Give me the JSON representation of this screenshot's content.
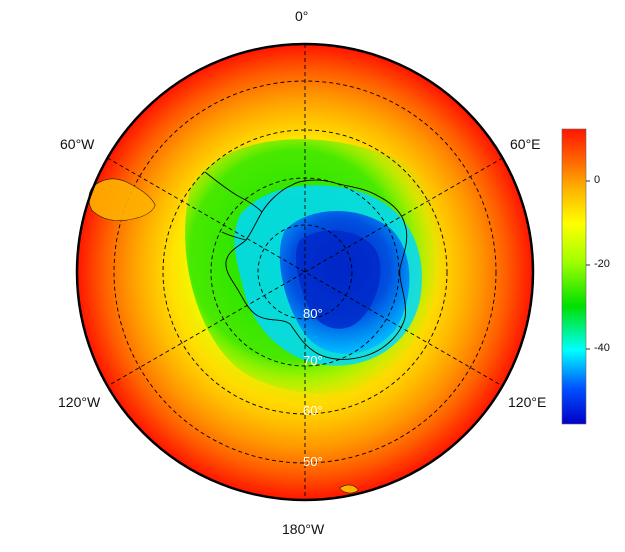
{
  "map": {
    "projection": "south-polar-stereographic",
    "colormap": [
      "#0000c8",
      "#00a0ff",
      "#00ffff",
      "#00e000",
      "#a0ff00",
      "#ffff00",
      "#ffb000",
      "#ff6000",
      "#ff1500"
    ]
  },
  "meridian_labels": {
    "top": "0°",
    "upper_left": "60°W",
    "upper_right": "60°E",
    "lower_left": "120°W",
    "lower_right": "120°E",
    "bottom": "180°W"
  },
  "latitude_labels": {
    "lat80": "80°",
    "lat70": "70°",
    "lat60": "60°",
    "lat50": "50°"
  },
  "colorbar": {
    "tick_labels": [
      "0",
      "-20",
      "-40"
    ],
    "range": [
      -58,
      12
    ]
  }
}
